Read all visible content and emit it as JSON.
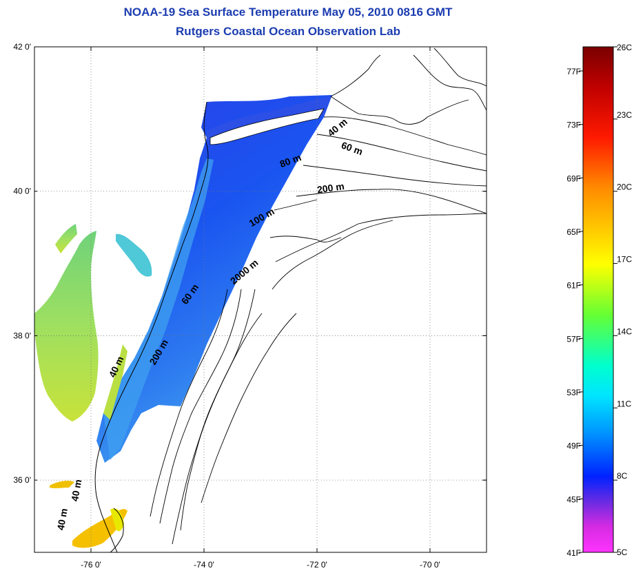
{
  "title": "NOAA-19 Sea Surface Temperature May 05, 2010 0816 GMT",
  "subtitle": "Rutgers Coastal Ocean Observation Lab",
  "map": {
    "lon_range": [
      -77,
      -69
    ],
    "lat_range": [
      35,
      42
    ],
    "lon_ticks": [
      {
        "value": -76,
        "label": "-76 0'"
      },
      {
        "value": -74,
        "label": "-74 0'"
      },
      {
        "value": -72,
        "label": "-72 0'"
      },
      {
        "value": -70,
        "label": "-70 0'"
      }
    ],
    "lat_ticks": [
      {
        "value": 42,
        "label": "42 0'"
      },
      {
        "value": 40,
        "label": "40 0'"
      },
      {
        "value": 38,
        "label": "38 0'"
      },
      {
        "value": 36,
        "label": "36 0'"
      }
    ],
    "grid": "dotted",
    "contour_labels": [
      {
        "text": "40 m",
        "lon": -71.6,
        "lat": 40.85,
        "angle": -40
      },
      {
        "text": "60 m",
        "lon": -71.4,
        "lat": 40.55,
        "angle": 20
      },
      {
        "text": "80 m",
        "lon": -72.45,
        "lat": 40.38,
        "angle": -20
      },
      {
        "text": "200 m",
        "lon": -71.75,
        "lat": 40.0,
        "angle": -8
      },
      {
        "text": "100 m",
        "lon": -72.95,
        "lat": 39.6,
        "angle": -30
      },
      {
        "text": "2000 m",
        "lon": -73.25,
        "lat": 38.85,
        "angle": -40
      },
      {
        "text": "60 m",
        "lon": -74.2,
        "lat": 38.55,
        "angle": -55
      },
      {
        "text": "200 m",
        "lon": -74.75,
        "lat": 37.75,
        "angle": -60
      },
      {
        "text": "40 m",
        "lon": -75.5,
        "lat": 37.55,
        "angle": -65
      },
      {
        "text": "40 m",
        "lon": -76.2,
        "lat": 35.85,
        "angle": -80
      },
      {
        "text": "40 m",
        "lon": -76.45,
        "lat": 35.45,
        "angle": -80
      }
    ]
  },
  "colorbar": {
    "fahrenheit_labels": [
      "77F",
      "73F",
      "69F",
      "65F",
      "61F",
      "57F",
      "53F",
      "49F",
      "45F",
      "41F"
    ],
    "celsius_labels": [
      "26C",
      "23C",
      "20C",
      "17C",
      "14C",
      "11C",
      "8C",
      "5C"
    ],
    "colors": {
      "top": "#7a0000",
      "red": "#ff0000",
      "orange": "#ff8c00",
      "yellow": "#ffff00",
      "green": "#66ff33",
      "cyan": "#00ffff",
      "blue": "#0044ff",
      "purple": "#8a2be2",
      "magenta": "#ff33ff"
    }
  }
}
